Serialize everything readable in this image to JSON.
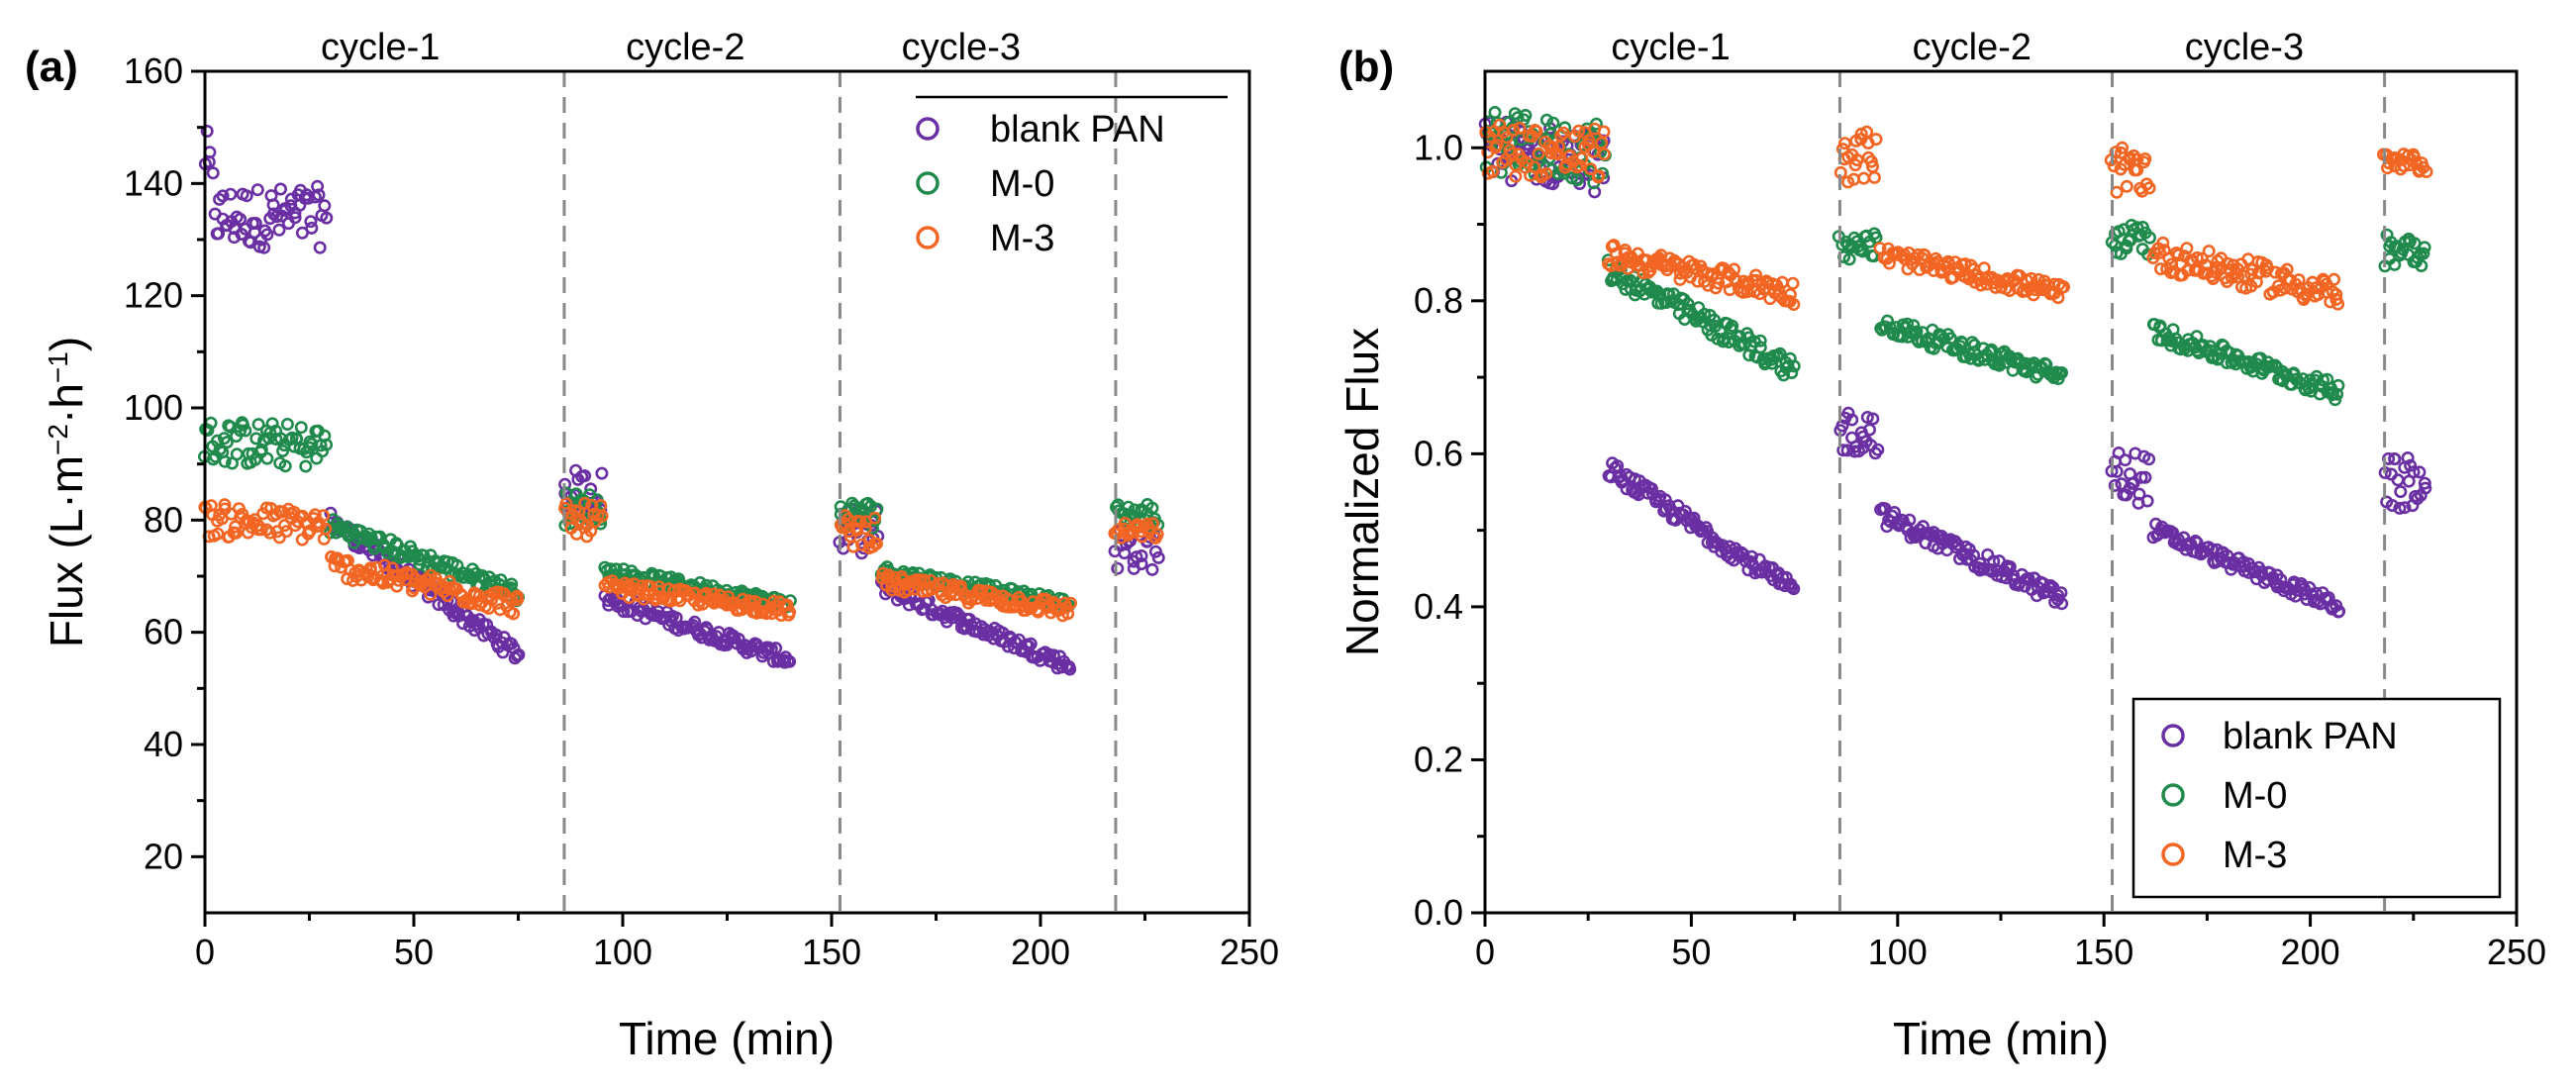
{
  "colors": {
    "blank PAN": "#6a2fa3",
    "M-0": "#1f8a4c",
    "M-3": "#f26522"
  },
  "chart_data": [
    {
      "id": "a",
      "type": "scatter",
      "panel_label": "(a)",
      "xlabel": "Time (min)",
      "ylabel_main": "Flux (L·m",
      "ylabel_sup1": "−2",
      "ylabel_mid": "·h",
      "ylabel_sup2": "−1",
      "ylabel_end": ")",
      "xlim": [
        0,
        250
      ],
      "ylim": [
        10,
        160
      ],
      "xticks": [
        0,
        50,
        100,
        150,
        200,
        250
      ],
      "yticks": [
        20,
        40,
        60,
        80,
        100,
        120,
        140,
        160
      ],
      "dividers": [
        86,
        152,
        218
      ],
      "cycle_labels": [
        {
          "text": "cycle-1",
          "x": 42
        },
        {
          "text": "cycle-2",
          "x": 115
        },
        {
          "text": "cycle-3",
          "x": 181
        }
      ],
      "legend": [
        "blank PAN",
        "M-0",
        "M-3"
      ],
      "legend_position": "top-right",
      "series": [
        {
          "name": "blank PAN",
          "segments": [
            {
              "x0": 0,
              "x1": 29,
              "y0": 134,
              "y1": 134,
              "noise": 5.5,
              "initial": 146
            },
            {
              "x0": 30,
              "x1": 75,
              "y0": 80,
              "y1": 56,
              "noise": 1.5
            },
            {
              "x0": 86,
              "x1": 95,
              "y0": 85,
              "y1": 85,
              "noise": 4
            },
            {
              "x0": 96,
              "x1": 140,
              "y0": 66,
              "y1": 55,
              "noise": 1.3
            },
            {
              "x0": 152,
              "x1": 161,
              "y0": 78,
              "y1": 78,
              "noise": 4
            },
            {
              "x0": 162,
              "x1": 207,
              "y0": 68,
              "y1": 54,
              "noise": 1.3
            },
            {
              "x0": 218,
              "x1": 228,
              "y0": 75,
              "y1": 75,
              "noise": 4
            }
          ]
        },
        {
          "name": "M-0",
          "segments": [
            {
              "x0": 0,
              "x1": 29,
              "y0": 94,
              "y1": 93,
              "noise": 4
            },
            {
              "x0": 30,
              "x1": 75,
              "y0": 79,
              "y1": 67,
              "noise": 1.5
            },
            {
              "x0": 86,
              "x1": 95,
              "y0": 82,
              "y1": 82,
              "noise": 3
            },
            {
              "x0": 96,
              "x1": 140,
              "y0": 71,
              "y1": 65,
              "noise": 1
            },
            {
              "x0": 152,
              "x1": 161,
              "y0": 81,
              "y1": 81,
              "noise": 2.5
            },
            {
              "x0": 162,
              "x1": 207,
              "y0": 71,
              "y1": 65,
              "noise": 1
            },
            {
              "x0": 218,
              "x1": 228,
              "y0": 81,
              "y1": 81,
              "noise": 2
            }
          ]
        },
        {
          "name": "M-3",
          "segments": [
            {
              "x0": 0,
              "x1": 29,
              "y0": 80,
              "y1": 79,
              "noise": 3
            },
            {
              "x0": 30,
              "x1": 75,
              "y0": 72,
              "y1": 65,
              "noise": 2
            },
            {
              "x0": 86,
              "x1": 95,
              "y0": 80,
              "y1": 80,
              "noise": 3
            },
            {
              "x0": 96,
              "x1": 140,
              "y0": 68,
              "y1": 64,
              "noise": 1.3
            },
            {
              "x0": 152,
              "x1": 161,
              "y0": 78,
              "y1": 78,
              "noise": 3
            },
            {
              "x0": 162,
              "x1": 207,
              "y0": 69,
              "y1": 64,
              "noise": 1.5
            },
            {
              "x0": 218,
              "x1": 228,
              "y0": 78,
              "y1": 78,
              "noise": 1.5
            }
          ]
        }
      ]
    },
    {
      "id": "b",
      "type": "scatter",
      "panel_label": "(b)",
      "xlabel": "Time (min)",
      "ylabel": "Normalized Flux",
      "xlim": [
        0,
        250
      ],
      "ylim": [
        0,
        1.1
      ],
      "xticks": [
        0,
        50,
        100,
        150,
        200,
        250
      ],
      "yticks": [
        0.0,
        0.2,
        0.4,
        0.6,
        0.8,
        1.0
      ],
      "ytick_labels": [
        "0.0",
        "0.2",
        "0.4",
        "0.6",
        "0.8",
        "1.0"
      ],
      "dividers": [
        86,
        152,
        218
      ],
      "cycle_labels": [
        {
          "text": "cycle-1",
          "x": 45
        },
        {
          "text": "cycle-2",
          "x": 118
        },
        {
          "text": "cycle-3",
          "x": 184
        }
      ],
      "legend": [
        "blank PAN",
        "M-0",
        "M-3"
      ],
      "legend_position": "bottom-right",
      "series": [
        {
          "name": "blank PAN",
          "segments": [
            {
              "x0": 0,
              "x1": 29,
              "y0": 1.0,
              "y1": 0.98,
              "noise": 0.04
            },
            {
              "x0": 30,
              "x1": 75,
              "y0": 0.58,
              "y1": 0.42,
              "noise": 0.012
            },
            {
              "x0": 86,
              "x1": 95,
              "y0": 0.63,
              "y1": 0.63,
              "noise": 0.03
            },
            {
              "x0": 96,
              "x1": 140,
              "y0": 0.52,
              "y1": 0.41,
              "noise": 0.012
            },
            {
              "x0": 152,
              "x1": 161,
              "y0": 0.57,
              "y1": 0.57,
              "noise": 0.035
            },
            {
              "x0": 162,
              "x1": 207,
              "y0": 0.5,
              "y1": 0.4,
              "noise": 0.01
            },
            {
              "x0": 218,
              "x1": 228,
              "y0": 0.56,
              "y1": 0.56,
              "noise": 0.035
            }
          ]
        },
        {
          "name": "M-0",
          "segments": [
            {
              "x0": 0,
              "x1": 29,
              "y0": 1.01,
              "y1": 0.99,
              "noise": 0.04
            },
            {
              "x0": 30,
              "x1": 75,
              "y0": 0.84,
              "y1": 0.71,
              "noise": 0.015
            },
            {
              "x0": 86,
              "x1": 95,
              "y0": 0.87,
              "y1": 0.87,
              "noise": 0.02
            },
            {
              "x0": 96,
              "x1": 140,
              "y0": 0.77,
              "y1": 0.7,
              "noise": 0.012
            },
            {
              "x0": 152,
              "x1": 161,
              "y0": 0.88,
              "y1": 0.88,
              "noise": 0.02
            },
            {
              "x0": 162,
              "x1": 207,
              "y0": 0.76,
              "y1": 0.68,
              "noise": 0.012
            },
            {
              "x0": 218,
              "x1": 228,
              "y0": 0.87,
              "y1": 0.87,
              "noise": 0.025
            }
          ]
        },
        {
          "name": "M-3",
          "segments": [
            {
              "x0": 0,
              "x1": 29,
              "y0": 1.0,
              "y1": 0.99,
              "noise": 0.035
            },
            {
              "x0": 30,
              "x1": 75,
              "y0": 0.86,
              "y1": 0.81,
              "noise": 0.015
            },
            {
              "x0": 86,
              "x1": 95,
              "y0": 0.99,
              "y1": 0.99,
              "noise": 0.035
            },
            {
              "x0": 96,
              "x1": 140,
              "y0": 0.86,
              "y1": 0.81,
              "noise": 0.012
            },
            {
              "x0": 152,
              "x1": 161,
              "y0": 0.97,
              "y1": 0.97,
              "noise": 0.03
            },
            {
              "x0": 162,
              "x1": 207,
              "y0": 0.86,
              "y1": 0.81,
              "noise": 0.02
            },
            {
              "x0": 218,
              "x1": 228,
              "y0": 0.98,
              "y1": 0.98,
              "noise": 0.012
            }
          ]
        }
      ]
    }
  ]
}
